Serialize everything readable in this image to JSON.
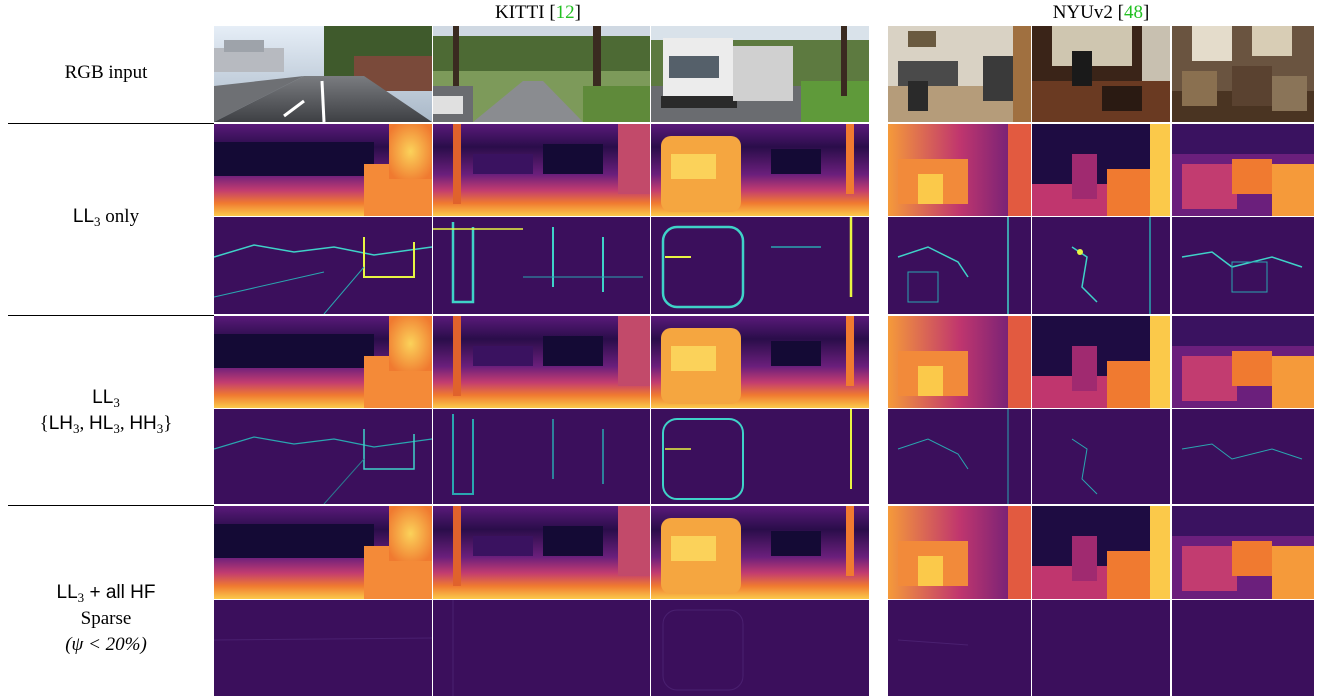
{
  "headers": {
    "kitti": {
      "name": "KITTI",
      "open": " [",
      "ref": "12",
      "close": "]"
    },
    "nyu": {
      "name": "NYUv2",
      "open": " [",
      "ref": "48",
      "close": "]"
    }
  },
  "row_labels": {
    "rgb": "RGB input",
    "ll3_only": {
      "main": "LL",
      "sub": "3",
      "rest": " only"
    },
    "ll3_hf": {
      "line1": {
        "main": "LL",
        "sub": "3"
      },
      "line2": {
        "open": "{",
        "a": "LH",
        "a_sub": "3",
        "sep1": ", ",
        "b": "HL",
        "b_sub": "3",
        "sep2": ", ",
        "c": "HH",
        "c_sub": "3",
        "close": "}"
      }
    },
    "ll3_all": {
      "line1": {
        "main": "LL",
        "sub": "3",
        "rest": " + all HF"
      },
      "line2": "Sparse",
      "line3": "(ψ < 20%)"
    }
  },
  "colors": {
    "inferno_dark": "#120a33",
    "inferno_purple": "#5a1a7a",
    "inferno_magenta": "#b5367a",
    "inferno_orange": "#f07a30",
    "inferno_yellow": "#fbc94a",
    "edge_bg": "#3b0f5c",
    "edge_line": "#3fd2c8",
    "edge_hot": "#e8f542",
    "separator": "#000000",
    "ref_green": "#22c022"
  }
}
